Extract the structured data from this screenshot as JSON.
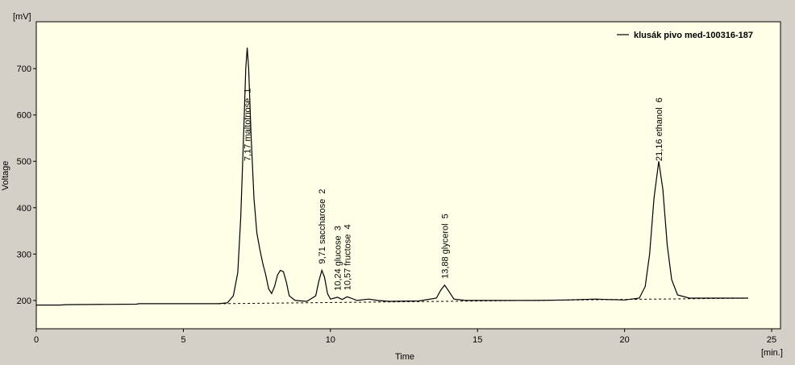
{
  "chart_data": {
    "type": "line",
    "x_label": "Time",
    "x_unit": "[min.]",
    "y_label": "Voltage",
    "y_unit": "[mV]",
    "xlim": [
      0,
      25.3
    ],
    "ylim": [
      139,
      801
    ],
    "xticks": [
      0,
      5,
      10,
      15,
      20,
      25
    ],
    "yticks": [
      200,
      300,
      400,
      500,
      600,
      700
    ],
    "x": [
      0,
      0.8,
      1,
      3.4,
      3.5,
      6.2,
      6.5,
      6.7,
      6.85,
      6.95,
      7.05,
      7.12,
      7.17,
      7.22,
      7.3,
      7.4,
      7.5,
      7.6,
      7.7,
      7.8,
      7.9,
      8.0,
      8.1,
      8.2,
      8.3,
      8.4,
      8.5,
      8.6,
      8.8,
      9.2,
      9.5,
      9.6,
      9.71,
      9.8,
      9.9,
      10.0,
      10.24,
      10.4,
      10.57,
      10.7,
      10.9,
      11.3,
      11.6,
      12,
      13,
      13.6,
      13.75,
      13.88,
      14.0,
      14.2,
      14.6,
      15,
      16,
      17,
      18,
      19,
      19.4,
      20,
      20.5,
      20.7,
      20.85,
      21.0,
      21.16,
      21.3,
      21.45,
      21.6,
      21.8,
      22.2,
      23,
      24,
      24.2
    ],
    "series": [
      {
        "name": "klusák pivo med-100316-187",
        "color": "#000000",
        "values": [
          190,
          190,
          191,
          192,
          193,
          193,
          195,
          210,
          260,
          380,
          560,
          700,
          745,
          700,
          560,
          420,
          345,
          310,
          280,
          255,
          225,
          215,
          230,
          255,
          265,
          262,
          240,
          210,
          200,
          198,
          210,
          240,
          265,
          250,
          215,
          203,
          207,
          202,
          208,
          205,
          200,
          203,
          200,
          198,
          199,
          205,
          222,
          233,
          222,
          203,
          200,
          200,
          200,
          200,
          201,
          203,
          202,
          201,
          205,
          230,
          300,
          420,
          500,
          440,
          320,
          245,
          212,
          205,
          205,
          205,
          205
        ]
      }
    ],
    "baseline": {
      "x": [
        6.2,
        24.2
      ],
      "values": [
        193,
        205
      ]
    },
    "annotations": [
      {
        "text": "7,17 maltotriose  1",
        "x": 7.17
      },
      {
        "text": "9,71 saccharose  2",
        "x": 9.71
      },
      {
        "text": "10,24 glucose  3",
        "x": 10.24
      },
      {
        "text": "10,57 fructose  4",
        "x": 10.57
      },
      {
        "text": "13,88 glycerol  5",
        "x": 13.88
      },
      {
        "text": "21,16 ethanol  6",
        "x": 21.16
      }
    ],
    "legend": "top-right",
    "background": "#ffffe8"
  }
}
